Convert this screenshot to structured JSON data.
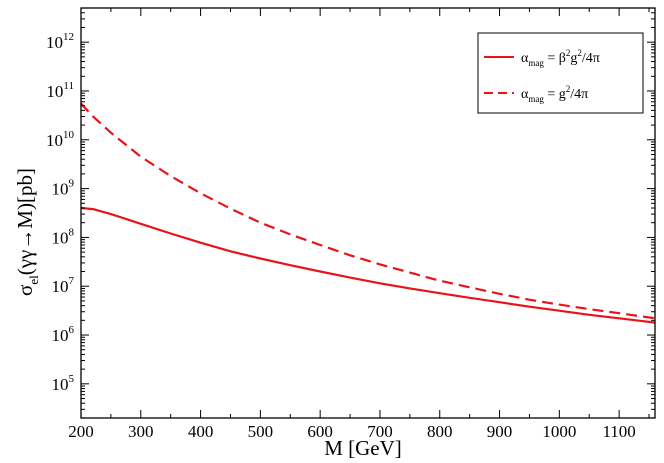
{
  "chart_data": {
    "type": "line",
    "xlabel": "M [GeV]",
    "ylabel": {
      "prefix": "σ",
      "sub": "el",
      "suffix": "(γγ→M)[pb]"
    },
    "xlim": [
      200,
      1160
    ],
    "ylim_log10": [
      4.3,
      12.7
    ],
    "y_scale": "log",
    "grid": false,
    "legend_position": "top-right",
    "x_ticks": [
      200,
      300,
      400,
      500,
      600,
      700,
      800,
      900,
      1000,
      1100
    ],
    "y_ticks": [
      {
        "base": "10",
        "exp": "5",
        "value": 100000
      },
      {
        "base": "10",
        "exp": "6",
        "value": 1000000
      },
      {
        "base": "10",
        "exp": "7",
        "value": 10000000
      },
      {
        "base": "10",
        "exp": "8",
        "value": 100000000
      },
      {
        "base": "10",
        "exp": "9",
        "value": 1000000000
      },
      {
        "base": "10",
        "exp": "10",
        "value": 10000000000
      },
      {
        "base": "10",
        "exp": "11",
        "value": 100000000000
      },
      {
        "base": "10",
        "exp": "12",
        "value": 1000000000000
      }
    ],
    "series": [
      {
        "name": "α_mag = β²g²/4π",
        "legend": {
          "alpha": "α",
          "sub": "mag",
          "eq": " = β",
          "sup1": "2",
          "mid": "g",
          "sup2": "2",
          "tail": "/4π"
        },
        "color": "#e8141b",
        "dash": "solid",
        "x": [
          200,
          220,
          250,
          300,
          350,
          400,
          450,
          500,
          550,
          600,
          650,
          700,
          750,
          800,
          850,
          900,
          950,
          1000,
          1050,
          1100,
          1160
        ],
        "y": [
          400000000,
          380000000,
          300000000,
          190000000,
          120000000,
          78000000,
          52000000,
          37000000,
          27000000,
          20000000,
          15000000,
          11500000,
          9000000,
          7200000,
          5800000,
          4700000,
          3800000,
          3150000,
          2600000,
          2200000,
          1800000
        ]
      },
      {
        "name": "α_mag = g²/4π",
        "legend": {
          "alpha": "α",
          "sub": "mag",
          "eq": " = g",
          "sup1": "2",
          "mid": "",
          "sup2": "",
          "tail": "/4π"
        },
        "color": "#e8141b",
        "dash": "dashed",
        "x": [
          200,
          220,
          250,
          300,
          350,
          400,
          450,
          500,
          550,
          600,
          650,
          700,
          750,
          800,
          850,
          900,
          950,
          1000,
          1050,
          1100,
          1160
        ],
        "y": [
          55000000000,
          30000000000,
          14000000000,
          4500000000,
          1800000000,
          800000000,
          390000000,
          200000000,
          115000000,
          70000000,
          43000000,
          28000000,
          19000000,
          13000000,
          9500000,
          7000000,
          5300000,
          4200000,
          3400000,
          2800000,
          2200000
        ]
      }
    ]
  }
}
